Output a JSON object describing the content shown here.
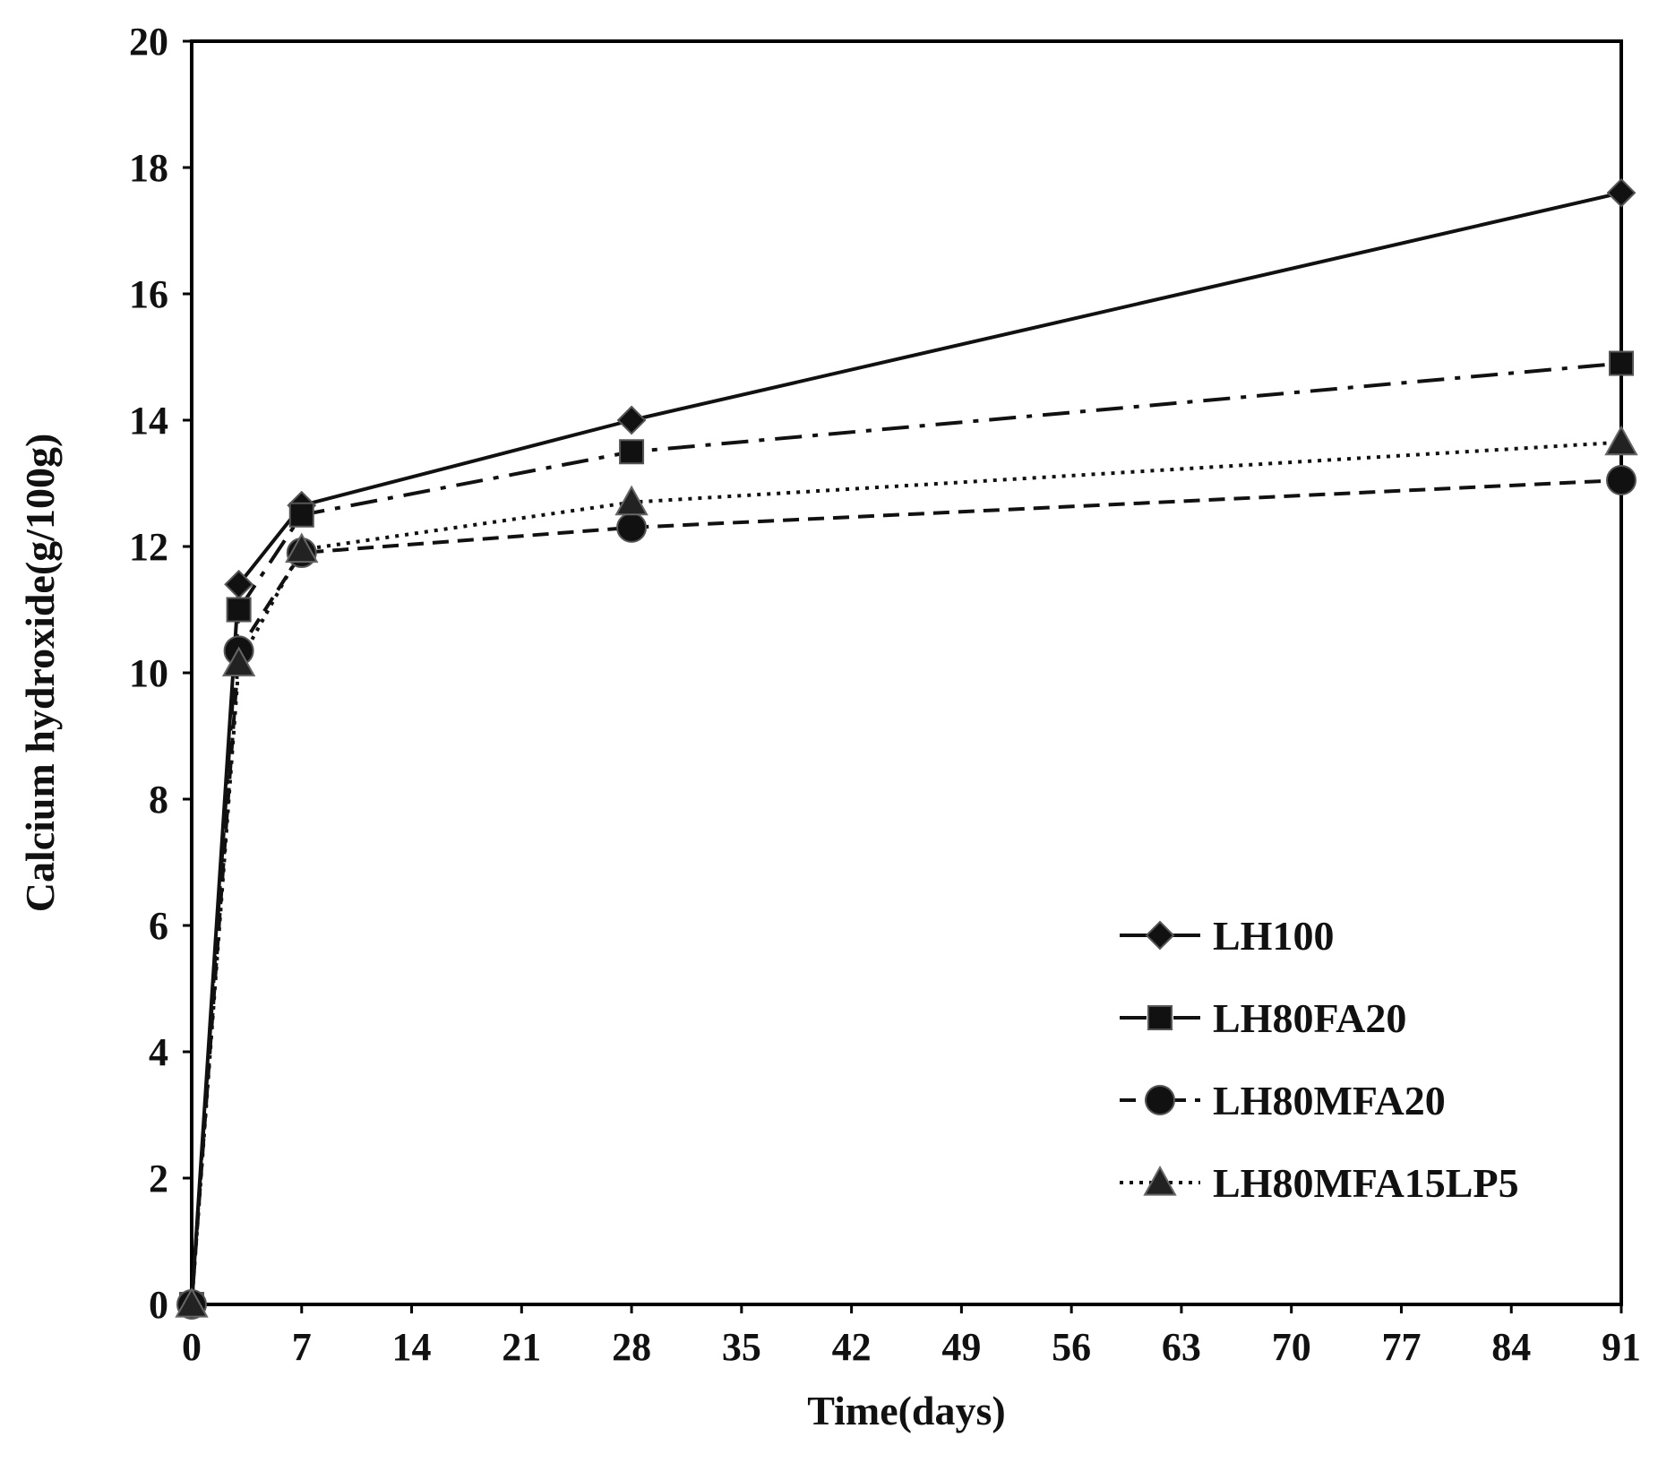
{
  "chart_data": {
    "type": "line",
    "xlabel": "Time(days)",
    "ylabel": "Calcium hydroxide(g/100g)",
    "xlim": [
      0,
      91
    ],
    "ylim": [
      0,
      20
    ],
    "xticks": [
      0,
      7,
      14,
      21,
      28,
      35,
      42,
      49,
      56,
      63,
      70,
      77,
      84,
      91
    ],
    "yticks": [
      0,
      2,
      4,
      6,
      8,
      10,
      12,
      14,
      16,
      18,
      20
    ],
    "x": [
      0,
      3,
      7,
      28,
      91
    ],
    "grid": false,
    "legend_position": "bottom-right",
    "series": [
      {
        "name": "LH100",
        "marker": "diamond",
        "line_style": "solid",
        "values": [
          0,
          11.4,
          12.65,
          14.0,
          17.6
        ]
      },
      {
        "name": "LH80FA20",
        "marker": "square",
        "line_style": "dash-dot",
        "values": [
          0,
          11.0,
          12.5,
          13.5,
          14.9
        ]
      },
      {
        "name": "LH80MFA20",
        "marker": "circle",
        "line_style": "dashed",
        "values": [
          0,
          10.35,
          11.9,
          12.3,
          13.05
        ]
      },
      {
        "name": "LH80MFA15LP5",
        "marker": "triangle",
        "line_style": "dotted",
        "values": [
          0,
          10.15,
          11.95,
          12.7,
          13.65
        ]
      }
    ]
  }
}
